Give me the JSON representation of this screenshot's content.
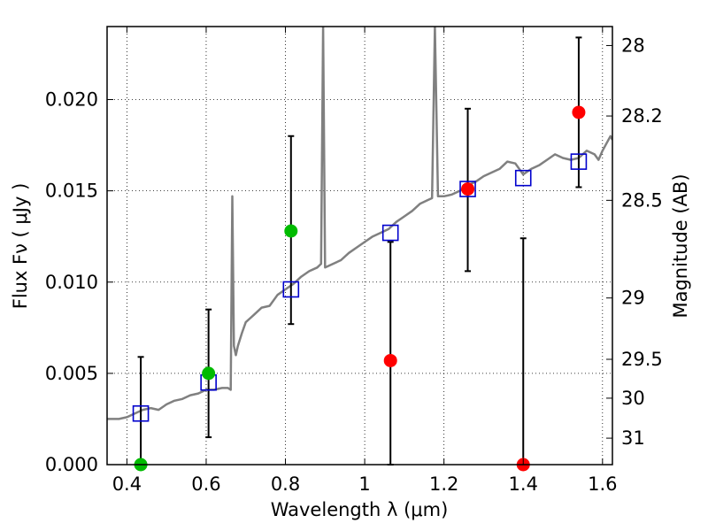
{
  "chart_data": {
    "type": "scatter",
    "xlabel": "Wavelength  λ (μm)",
    "ylabel": "Flux  Fν  ( μJy )",
    "ylabel_right": "Magnitude (AB)",
    "xlim": [
      0.35,
      1.625
    ],
    "ylim": [
      0,
      0.024
    ],
    "grid": true,
    "xticks": [
      {
        "value": 0.4,
        "label": "0.4"
      },
      {
        "value": 0.6,
        "label": "0.6"
      },
      {
        "value": 0.8,
        "label": "0.8"
      },
      {
        "value": 1.0,
        "label": "1"
      },
      {
        "value": 1.2,
        "label": "1.2"
      },
      {
        "value": 1.4,
        "label": "1.4"
      },
      {
        "value": 1.6,
        "label": "1.6"
      }
    ],
    "yticks": [
      {
        "value": 0.0,
        "label": "0.000"
      },
      {
        "value": 0.005,
        "label": "0.005"
      },
      {
        "value": 0.01,
        "label": "0.010"
      },
      {
        "value": 0.015,
        "label": "0.015"
      },
      {
        "value": 0.02,
        "label": "0.020"
      }
    ],
    "right_ticks": [
      {
        "label": "28",
        "flux": 0.02296
      },
      {
        "label": "28.2",
        "flux": 0.0191
      },
      {
        "label": "28.5",
        "flux": 0.01448
      },
      {
        "label": "29",
        "flux": 0.00913
      },
      {
        "label": "29.5",
        "flux": 0.00577
      },
      {
        "label": "30",
        "flux": 0.00364
      },
      {
        "label": "31",
        "flux": 0.00145
      }
    ],
    "model_spectrum": {
      "color": "#808080",
      "points": [
        [
          0.35,
          0.0025
        ],
        [
          0.38,
          0.0025
        ],
        [
          0.4,
          0.0026
        ],
        [
          0.42,
          0.0028
        ],
        [
          0.44,
          0.003
        ],
        [
          0.46,
          0.0031
        ],
        [
          0.48,
          0.003
        ],
        [
          0.5,
          0.0033
        ],
        [
          0.52,
          0.0035
        ],
        [
          0.54,
          0.0036
        ],
        [
          0.56,
          0.0038
        ],
        [
          0.58,
          0.0039
        ],
        [
          0.6,
          0.0041
        ],
        [
          0.62,
          0.0041
        ],
        [
          0.64,
          0.0042
        ],
        [
          0.655,
          0.0042
        ],
        [
          0.662,
          0.0041
        ],
        [
          0.666,
          0.0147
        ],
        [
          0.67,
          0.0065
        ],
        [
          0.675,
          0.006
        ],
        [
          0.68,
          0.0065
        ],
        [
          0.69,
          0.0072
        ],
        [
          0.7,
          0.0078
        ],
        [
          0.71,
          0.008
        ],
        [
          0.72,
          0.0082
        ],
        [
          0.74,
          0.0086
        ],
        [
          0.76,
          0.0087
        ],
        [
          0.78,
          0.0093
        ],
        [
          0.8,
          0.0096
        ],
        [
          0.82,
          0.0099
        ],
        [
          0.84,
          0.0103
        ],
        [
          0.86,
          0.0106
        ],
        [
          0.88,
          0.0108
        ],
        [
          0.89,
          0.011
        ],
        [
          0.895,
          0.024
        ],
        [
          0.9,
          0.0108
        ],
        [
          0.92,
          0.011
        ],
        [
          0.94,
          0.0112
        ],
        [
          0.96,
          0.0116
        ],
        [
          0.98,
          0.0119
        ],
        [
          1.0,
          0.0122
        ],
        [
          1.02,
          0.0125
        ],
        [
          1.04,
          0.0127
        ],
        [
          1.06,
          0.0129
        ],
        [
          1.08,
          0.0133
        ],
        [
          1.1,
          0.0136
        ],
        [
          1.12,
          0.0139
        ],
        [
          1.14,
          0.0143
        ],
        [
          1.16,
          0.0145
        ],
        [
          1.17,
          0.0146
        ],
        [
          1.177,
          0.024
        ],
        [
          1.185,
          0.0147
        ],
        [
          1.2,
          0.0147
        ],
        [
          1.22,
          0.0148
        ],
        [
          1.24,
          0.015
        ],
        [
          1.26,
          0.0153
        ],
        [
          1.28,
          0.0155
        ],
        [
          1.3,
          0.0158
        ],
        [
          1.32,
          0.016
        ],
        [
          1.34,
          0.0162
        ],
        [
          1.36,
          0.0166
        ],
        [
          1.38,
          0.0165
        ],
        [
          1.4,
          0.0159
        ],
        [
          1.42,
          0.0162
        ],
        [
          1.44,
          0.0164
        ],
        [
          1.46,
          0.0167
        ],
        [
          1.48,
          0.017
        ],
        [
          1.5,
          0.0168
        ],
        [
          1.52,
          0.0167
        ],
        [
          1.54,
          0.0168
        ],
        [
          1.56,
          0.0172
        ],
        [
          1.58,
          0.017
        ],
        [
          1.59,
          0.0167
        ],
        [
          1.6,
          0.0172
        ],
        [
          1.62,
          0.018
        ],
        [
          1.625,
          0.0178
        ]
      ]
    },
    "model_photometry": {
      "marker": "open-square",
      "color": "#0000cc",
      "points": [
        {
          "x": 0.435,
          "y": 0.0028
        },
        {
          "x": 0.606,
          "y": 0.0045
        },
        {
          "x": 0.814,
          "y": 0.0096
        },
        {
          "x": 1.065,
          "y": 0.0127
        },
        {
          "x": 1.26,
          "y": 0.0151
        },
        {
          "x": 1.4,
          "y": 0.0157
        },
        {
          "x": 1.54,
          "y": 0.0166
        }
      ]
    },
    "detections": {
      "marker": "filled-circle",
      "color": "#00bb00",
      "points": [
        {
          "x": 0.435,
          "y": 0.0,
          "yerr": [
            0.0,
            0.0059
          ]
        },
        {
          "x": 0.606,
          "y": 0.005,
          "yerr": [
            0.0015,
            0.0085
          ]
        },
        {
          "x": 0.814,
          "y": 0.0128,
          "yerr": [
            0.0077,
            0.018
          ]
        }
      ]
    },
    "ir_points": {
      "marker": "filled-circle",
      "color": "#ff0000",
      "points": [
        {
          "x": 1.065,
          "y": 0.0057,
          "yerr": [
            0.0,
            0.0122
          ]
        },
        {
          "x": 1.26,
          "y": 0.0151,
          "yerr": [
            0.0106,
            0.0195
          ]
        },
        {
          "x": 1.4,
          "y": 0.0,
          "yerr": [
            0.0,
            0.0124
          ]
        },
        {
          "x": 1.54,
          "y": 0.0193,
          "yerr": [
            0.0152,
            0.0234
          ]
        }
      ]
    }
  }
}
